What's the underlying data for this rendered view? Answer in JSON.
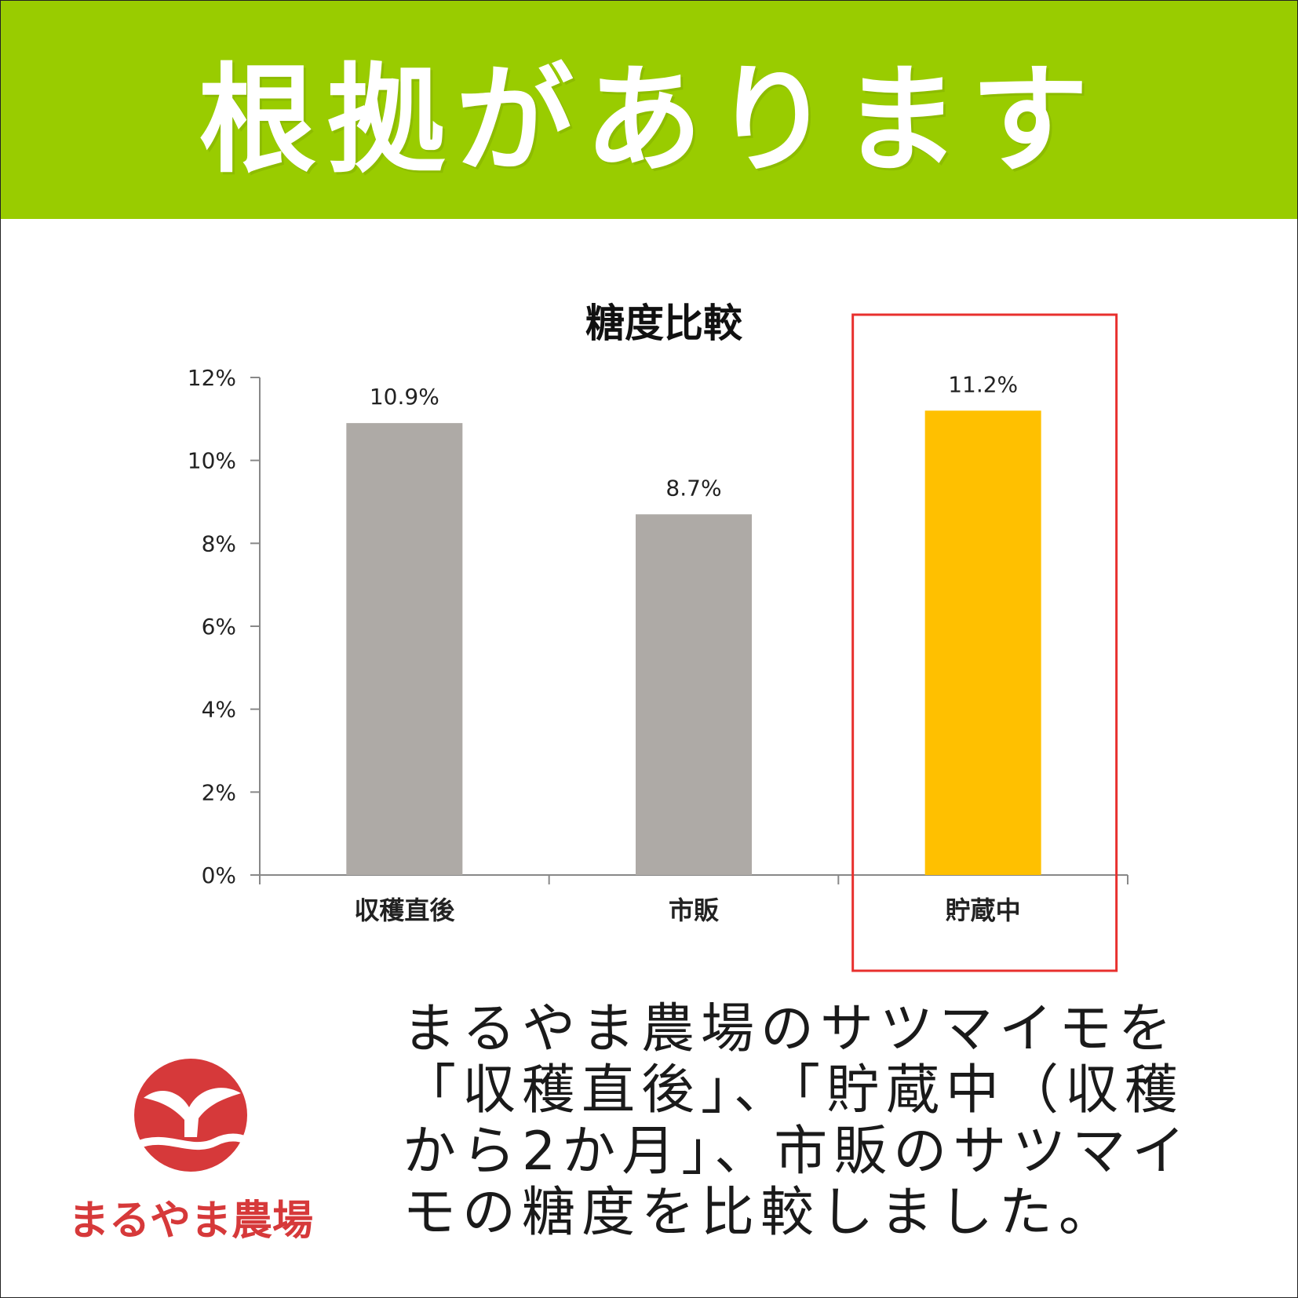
{
  "banner": {
    "title": "根拠があります",
    "bg_color": "#99cc00"
  },
  "chart_data": {
    "type": "bar",
    "title": "糖度比較",
    "categories": [
      "収穫直後",
      "市販",
      "貯蔵中"
    ],
    "values": [
      10.9,
      8.7,
      11.2
    ],
    "value_labels": [
      "10.9%",
      "8.7%",
      "11.2%"
    ],
    "yticks": [
      "0%",
      "2%",
      "4%",
      "6%",
      "8%",
      "10%",
      "12%"
    ],
    "ylim": [
      0,
      12
    ],
    "xlabel": "",
    "ylabel": "",
    "grid": false,
    "bar_colors": [
      "#aeaaa6",
      "#aeaaa6",
      "#ffc000"
    ],
    "highlight": {
      "category": "貯蔵中",
      "color": "#e8302e"
    }
  },
  "description": "まるやま農場のサツマイモを\n「収穫直後」、「貯蔵中（収穫\nから2か月」、市販のサツマイ\nモの糖度を比較しました。",
  "logo": {
    "name": "まるやま農場",
    "color": "#d6393a",
    "icon": "sprout-circle-logo"
  }
}
